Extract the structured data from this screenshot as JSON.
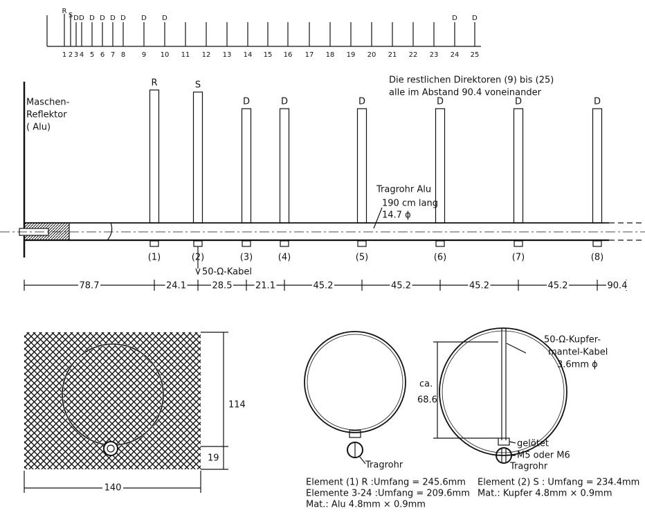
{
  "scale": {
    "markers": [
      "R",
      "S",
      "D",
      "D",
      "D",
      "D",
      "D",
      "D",
      "D",
      "D",
      "D",
      "D"
    ],
    "numbers": [
      "1",
      "2",
      "3",
      "4",
      "5",
      "6",
      "7",
      "8",
      "9",
      "10",
      "11",
      "12",
      "13",
      "14",
      "15",
      "16",
      "17",
      "18",
      "19",
      "20",
      "21",
      "22",
      "23",
      "24",
      "25"
    ]
  },
  "side_view": {
    "reflector": [
      "Maschen-",
      "Reflektor",
      "( Alu)"
    ],
    "note": [
      "Die restlichen Direktoren (9) bis (25)",
      "alle im Abstand  90.4 voneinander"
    ],
    "boom": [
      "Tragrohr Alu",
      "190 cm lang",
      "14.7 ϕ"
    ],
    "cable": "50-Ω-Kabel",
    "element_letters": [
      "R",
      "S",
      "D",
      "D",
      "D",
      "D",
      "D",
      "D"
    ],
    "element_numbers": [
      "(1)",
      "(2)",
      "(3)",
      "(4)",
      "(5)",
      "(6)",
      "(7)",
      "(8)"
    ],
    "dimensions": [
      "78.7",
      "24.1",
      "28.5",
      "21.1",
      "45.2",
      "45.2",
      "45.2",
      "45.2",
      "90.4"
    ]
  },
  "reflector_view": {
    "width": "140",
    "height": "114",
    "offset": "19"
  },
  "element_r": {
    "boom": "Tragrohr",
    "spec": [
      "Element (1) R   :Umfang = 245.6mm",
      "Elemente 3-24  :Umfang = 209.6mm",
      "Mat.: Alu  4.8mm × 0.9mm"
    ]
  },
  "element_s": {
    "cable": [
      "50-Ω-Kupfer-",
      "mantel-Kabel",
      "3.6mm ϕ"
    ],
    "diameter": [
      "ca.",
      "68.6"
    ],
    "solder": "gelötet",
    "bolt": "M5 oder M6",
    "boom": "Tragrohr",
    "spec": [
      "Element (2) S : Umfang = 234.4mm",
      "Mat.: Kupfer 4.8mm × 0.9mm"
    ]
  }
}
